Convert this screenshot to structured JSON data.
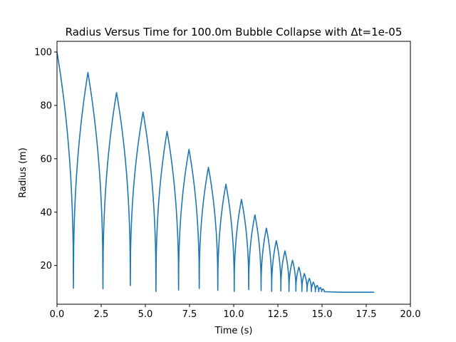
{
  "chart_data": {
    "type": "line",
    "title": "Radius Versus Time for 100.0m Bubble Collapse with Δt=1e-05",
    "xlabel": "Time (s)",
    "ylabel": "Radius (m)",
    "xlim": [
      0,
      20
    ],
    "ylim": [
      5.5,
      104
    ],
    "grid": false,
    "xticks": [
      0,
      2.5,
      5,
      7.5,
      10,
      12.5,
      15,
      17.5,
      20
    ],
    "xtick_labels": [
      "0.0",
      "2.5",
      "5.0",
      "7.5",
      "10.0",
      "12.5",
      "15.0",
      "17.5",
      "20.0"
    ],
    "yticks": [
      20,
      40,
      60,
      80,
      100
    ],
    "ytick_labels": [
      "20",
      "40",
      "60",
      "80",
      "100"
    ],
    "color": "#1f77b4",
    "series": [
      {
        "collapses": [
          {
            "t": 0.93,
            "r": 11.5
          },
          {
            "t": 2.6,
            "r": 11.3
          },
          {
            "t": 4.15,
            "r": 12.5
          },
          {
            "t": 5.6,
            "r": 10.3
          },
          {
            "t": 6.88,
            "r": 10.8
          },
          {
            "t": 8.05,
            "r": 11.4
          },
          {
            "t": 9.1,
            "r": 10.7
          },
          {
            "t": 10.03,
            "r": 10.3
          },
          {
            "t": 10.85,
            "r": 11.0
          },
          {
            "t": 11.55,
            "r": 10.6
          },
          {
            "t": 12.15,
            "r": 10.3
          },
          {
            "t": 12.67,
            "r": 10.5
          },
          {
            "t": 13.13,
            "r": 10.3
          },
          {
            "t": 13.52,
            "r": 10.4
          },
          {
            "t": 13.86,
            "r": 10.3
          },
          {
            "t": 14.15,
            "r": 10.3
          },
          {
            "t": 14.4,
            "r": 10.3
          },
          {
            "t": 14.62,
            "r": 10.2
          },
          {
            "t": 14.81,
            "r": 10.2
          },
          {
            "t": 14.98,
            "r": 10.2
          },
          {
            "t": 15.13,
            "r": 10.2
          }
        ],
        "peaks": [
          {
            "t": 1.75,
            "r": 92.3
          },
          {
            "t": 3.37,
            "r": 84.8
          },
          {
            "t": 4.87,
            "r": 77.5
          },
          {
            "t": 6.23,
            "r": 70.3
          },
          {
            "t": 7.47,
            "r": 63.5
          },
          {
            "t": 8.57,
            "r": 56.8
          },
          {
            "t": 9.56,
            "r": 50.5
          },
          {
            "t": 10.44,
            "r": 44.8
          },
          {
            "t": 11.2,
            "r": 39.0
          },
          {
            "t": 11.85,
            "r": 34.0
          },
          {
            "t": 12.41,
            "r": 29.3
          },
          {
            "t": 12.9,
            "r": 25.5
          },
          {
            "t": 13.33,
            "r": 22.0
          },
          {
            "t": 13.69,
            "r": 19.4
          },
          {
            "t": 14.0,
            "r": 17.0
          },
          {
            "t": 14.28,
            "r": 15.2
          },
          {
            "t": 14.51,
            "r": 13.8
          },
          {
            "t": 14.72,
            "r": 12.6
          },
          {
            "t": 14.9,
            "r": 11.8
          },
          {
            "t": 15.06,
            "r": 11.2
          }
        ],
        "initial": {
          "t": 0.0,
          "r": 100.0
        },
        "settled": [
          {
            "t": 16.2,
            "r": 10.0
          },
          {
            "t": 17.95,
            "r": 10.0
          }
        ]
      }
    ]
  }
}
